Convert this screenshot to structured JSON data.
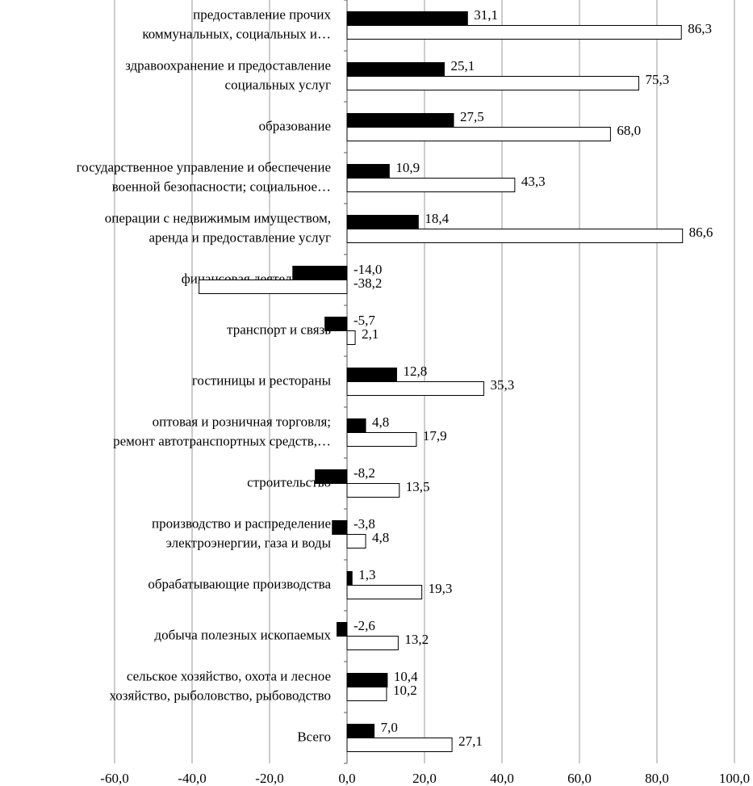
{
  "chart_data": {
    "type": "bar",
    "orientation": "horizontal",
    "categories": [
      [
        "предоставление прочих",
        "коммунальных, социальных и…"
      ],
      [
        "здравоохранение и предоставление",
        "социальных услуг"
      ],
      [
        "образование"
      ],
      [
        "государственное управление и обеспечение",
        "военной безопасности;  социальное…"
      ],
      [
        "операции с недвижимым имуществом,",
        "аренда и предоставление услуг"
      ],
      [
        "финансовая деятельность"
      ],
      [
        "транспорт и связь"
      ],
      [
        "гостиницы и рестораны"
      ],
      [
        "оптовая и розничная торговля;",
        "ремонт автотранспортных средств,…"
      ],
      [
        "строительство"
      ],
      [
        "производство и распределение",
        "электроэнергии, газа и воды"
      ],
      [
        "обрабатывающие производства"
      ],
      [
        "добыча полезных ископаемых"
      ],
      [
        "сельское хозяйство, охота и лесное",
        "хозяйство, рыболовство, рыбоводство"
      ],
      [
        "Всего"
      ]
    ],
    "series": [
      {
        "color": "#000000",
        "values": [
          31.1,
          25.1,
          27.5,
          10.9,
          18.4,
          -14.0,
          -5.7,
          12.8,
          4.8,
          -8.2,
          -3.8,
          1.3,
          -2.6,
          10.4,
          7.0
        ],
        "value_labels": [
          "31,1",
          "25,1",
          "27,5",
          "10,9",
          "18,4",
          "-14,0",
          "-5,7",
          "12,8",
          "4,8",
          "-8,2",
          "-3,8",
          "1,3",
          "-2,6",
          "10,4",
          "7,0"
        ]
      },
      {
        "color": "#ffffff",
        "values": [
          86.3,
          75.3,
          68.0,
          43.3,
          86.6,
          -38.2,
          2.1,
          35.3,
          17.9,
          13.5,
          4.8,
          19.3,
          13.2,
          10.2,
          27.1
        ],
        "value_labels": [
          "86,3",
          "75,3",
          "68,0",
          "43,3",
          "86,6",
          "-38,2",
          "2,1",
          "35,3",
          "17,9",
          "13,5",
          "4,8",
          "19,3",
          "13,2",
          "10,2",
          "27,1"
        ]
      }
    ],
    "xlim": [
      -60,
      100
    ],
    "xticks": [
      {
        "value": -60,
        "label": "-60,0"
      },
      {
        "value": -40,
        "label": "-40,0"
      },
      {
        "value": -20,
        "label": "-20,0"
      },
      {
        "value": 0,
        "label": "0,0"
      },
      {
        "value": 20,
        "label": "20,0"
      },
      {
        "value": 40,
        "label": "40,0"
      },
      {
        "value": 60,
        "label": "60,0"
      },
      {
        "value": 80,
        "label": "80,0"
      },
      {
        "value": 100,
        "label": {
          "value": 100,
          "label": "100,0"
        }
      }
    ],
    "grid": true
  }
}
